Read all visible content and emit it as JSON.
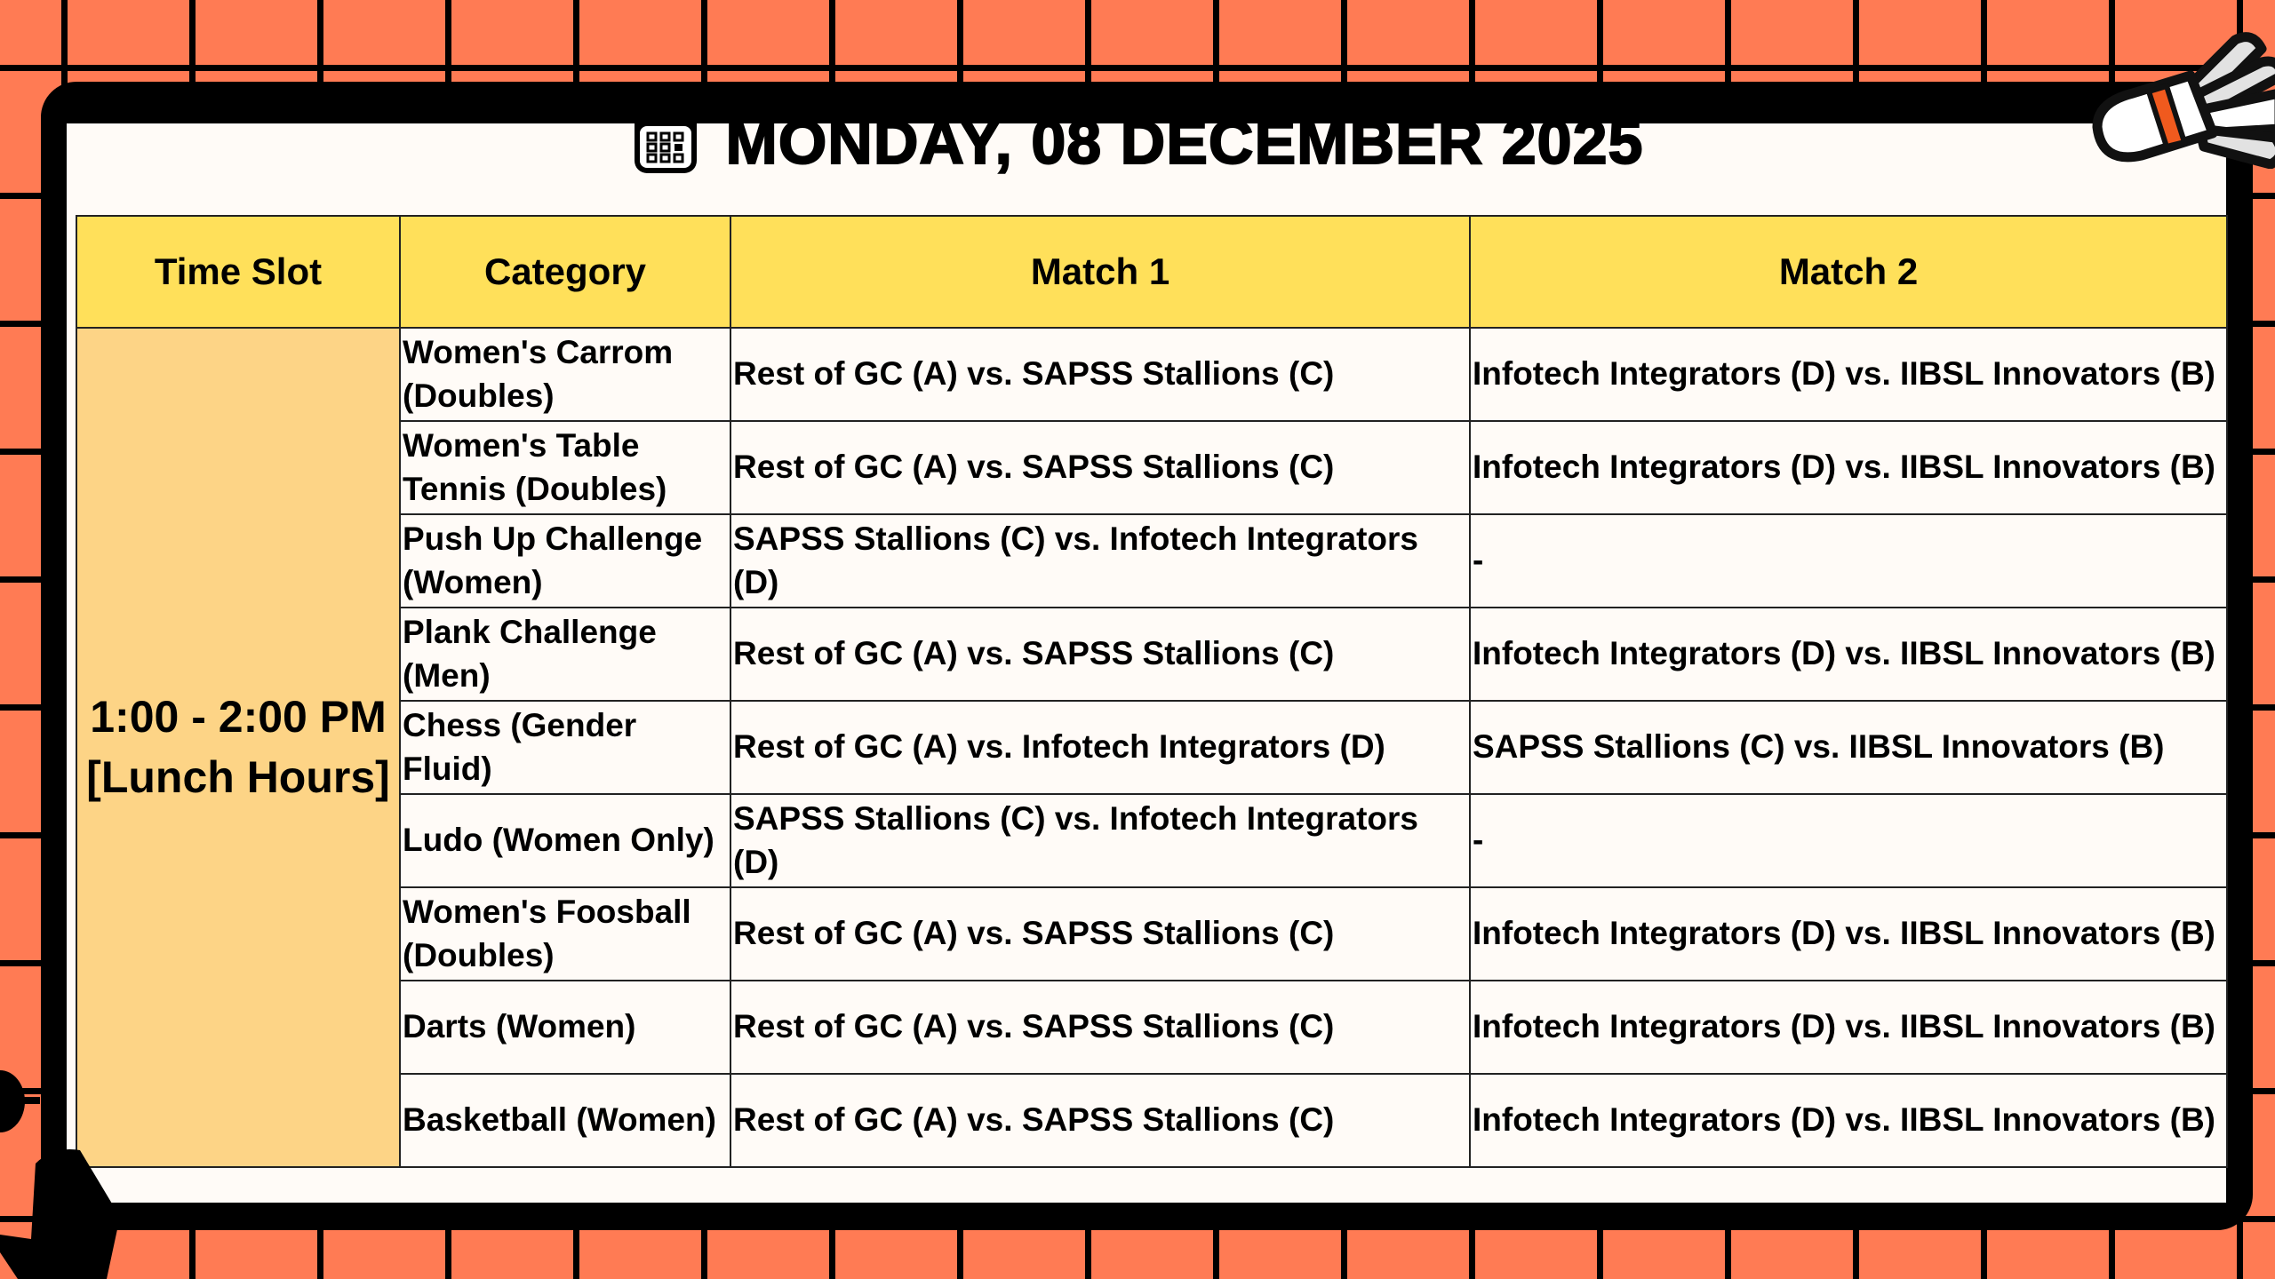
{
  "header": {
    "title": "MONDAY, 08  DECEMBER 2025",
    "icon": "calendar-icon"
  },
  "table": {
    "columns": [
      "Time Slot",
      "Category",
      "Match 1",
      "Match 2"
    ],
    "time_slot": {
      "time": "1:00 -  2:00 PM",
      "note": "[Lunch Hours]"
    },
    "rows": [
      {
        "category": "Women's Carrom (Doubles)",
        "match1": "Rest of GC (A) vs. SAPSS Stallions (C)",
        "match2": "Infotech Integrators (D) vs. IIBSL Innovators (B)"
      },
      {
        "category": "Women's Table Tennis (Doubles)",
        "match1": "Rest of GC (A) vs. SAPSS Stallions (C)",
        "match2": "Infotech Integrators (D) vs. IIBSL Innovators (B)"
      },
      {
        "category": "Push Up Challenge (Women)",
        "match1": "SAPSS Stallions (C) vs. Infotech Integrators (D)",
        "match2": "-"
      },
      {
        "category": "Plank Challenge (Men)",
        "match1": "Rest of GC (A) vs. SAPSS Stallions (C)",
        "match2": "Infotech Integrators (D) vs. IIBSL Innovators (B)"
      },
      {
        "category": "Chess (Gender Fluid)",
        "match1": "Rest of GC (A) vs. Infotech Integrators (D)",
        "match2": "SAPSS Stallions (C) vs. IIBSL Innovators (B)"
      },
      {
        "category": "Ludo (Women Only)",
        "match1": "SAPSS Stallions (C) vs. Infotech Integrators (D)",
        "match2": "-"
      },
      {
        "category": "Women's Foosball (Doubles)",
        "match1": "Rest of GC (A) vs. SAPSS Stallions (C)",
        "match2": "Infotech Integrators (D) vs. IIBSL Innovators (B)"
      },
      {
        "category": "Darts (Women)",
        "match1": "Rest of GC (A) vs. SAPSS Stallions (C)",
        "match2": "Infotech Integrators (D) vs. IIBSL Innovators (B)"
      },
      {
        "category": "Basketball (Women)",
        "match1": "Rest of GC (A) vs. SAPSS Stallions (C)",
        "match2": "Infotech Integrators (D) vs. IIBSL Innovators (B)"
      }
    ]
  },
  "colors": {
    "background": "#FF7B54",
    "header_row": "#FFE05A",
    "time_slot": "#FDD486",
    "board": "#FFFBF7"
  }
}
